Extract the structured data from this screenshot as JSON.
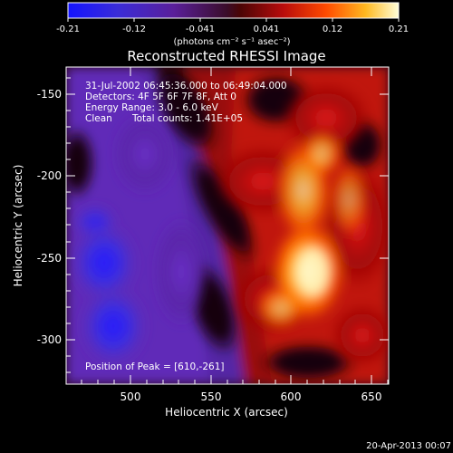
{
  "colorbar": {
    "tick_labels": [
      "-0.21",
      "-0.12",
      "-0.041",
      "0.041",
      "0.12",
      "0.21"
    ],
    "units_text": "(photons cm⁻² s⁻¹ asec⁻²)"
  },
  "plot": {
    "title": "Reconstructed RHESSI Image",
    "xlabel": "Heliocentric X (arcsec)",
    "ylabel": "Heliocentric Y (arcsec)",
    "x_ticks": [
      "500",
      "550",
      "600",
      "650"
    ],
    "y_ticks": [
      "-150",
      "-200",
      "-250",
      "-300"
    ],
    "annotations": {
      "time_range": "31-Jul-2002 06:45:36.000 to 06:49:04.000",
      "detectors": "Detectors: 4F 5F 6F 7F 8F, Att 0",
      "energy": "Energy Range: 3.0 - 6.0 keV",
      "clean": "Clean",
      "total_counts": "Total counts: 1.41E+05",
      "peak": "Position of Peak = [610,-261]"
    }
  },
  "footer": {
    "timestamp": "20-Apr-2013 00:07"
  }
}
